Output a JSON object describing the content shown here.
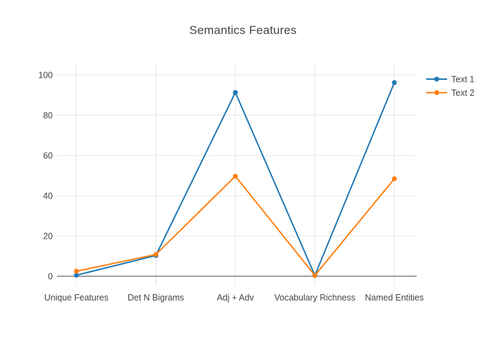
{
  "chart_data": {
    "type": "line",
    "title": "Semantics Features",
    "categories": [
      "Unique Features",
      "Det N Bigrams",
      "Adj + Adv",
      "Vocabulary Richness",
      "Named Entities"
    ],
    "series": [
      {
        "name": "Text 1",
        "color": "#1f77b4",
        "values": [
          0.5,
          10.3,
          91.3,
          0.4,
          96.2
        ]
      },
      {
        "name": "Text 2",
        "color": "#ff7f0e",
        "values": [
          2.5,
          10.8,
          49.7,
          0.4,
          48.4
        ]
      }
    ],
    "yticks": [
      0,
      20,
      40,
      60,
      80,
      100
    ],
    "ylim": [
      -3,
      105
    ],
    "xlabel": "",
    "ylabel": "",
    "grid": true,
    "legend_position": "top-right",
    "marker": "circle",
    "colors": {
      "background": "#ffffff",
      "gridline": "#e5e5e5",
      "zeroline": "#666666",
      "text": "#444444"
    }
  }
}
